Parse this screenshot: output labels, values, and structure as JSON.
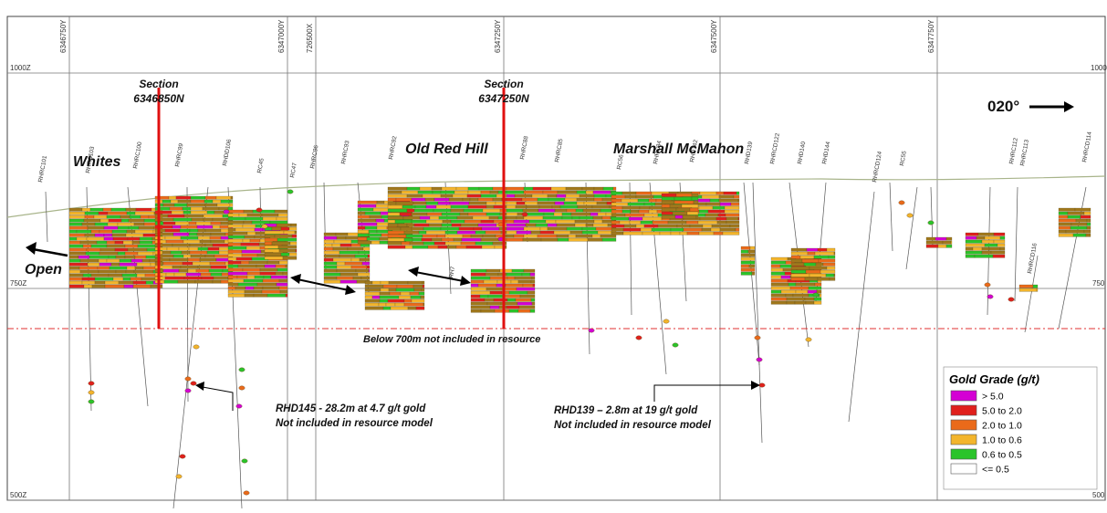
{
  "grid": {
    "northing_labels": [
      "6346750Y",
      "6347000Y",
      "726500X",
      "6347250Y",
      "6347500Y",
      "6347750Y"
    ],
    "elevation_labels": [
      "1000Z",
      "750Z",
      "500Z"
    ],
    "elevation_labels_right": [
      "1000",
      "750",
      "500"
    ]
  },
  "sections": [
    {
      "line1": "Section",
      "line2": "6346850N"
    },
    {
      "line1": "Section",
      "line2": "6347250N"
    }
  ],
  "deposits": [
    "Whites",
    "Old Red Hill",
    "Marshall McMahon"
  ],
  "orientation": {
    "label": "020°"
  },
  "open_label": "Open",
  "resource_cutoff_label": "Below 700m not included in resource",
  "annotations": [
    {
      "line1": "RHD145 - 28.2m at 4.7 g/t gold",
      "line2": "Not included in resource model"
    },
    {
      "line1": "RHD139 – 2.8m at 19 g/t gold",
      "line2": "Not included in resource model"
    }
  ],
  "drillhole_labels": [
    "RHRC101",
    "RHRC103",
    "RHRC100",
    "RHRC99",
    "RHDD106",
    "RC45",
    "RC47",
    "RHRC96",
    "RHRC93",
    "RHRC92",
    "RH7",
    "RHRC88",
    "RHRC85",
    "RC56",
    "RHRC84",
    "RHD142",
    "RHD139",
    "RHRCD122",
    "RHD140",
    "RHD144",
    "RHRCD124",
    "RC55",
    "RHRC112",
    "RHRC113",
    "RHRCD114",
    "RHRCD116"
  ],
  "legend": {
    "title": "Gold Grade (g/t)",
    "items": [
      {
        "label": "> 5.0",
        "color": "#d400d4"
      },
      {
        "label": "5.0 to 2.0",
        "color": "#e0201c"
      },
      {
        "label": "2.0 to 1.0",
        "color": "#ea6a1a"
      },
      {
        "label": "1.0 to 0.6",
        "color": "#f3b52c"
      },
      {
        "label": "0.6 to 0.5",
        "color": "#2ac42a"
      },
      {
        "label": "<= 0.5",
        "color": "#ffffff"
      }
    ]
  },
  "colors": {
    "section_line": "#e01010",
    "cutoff_line": "#e03030",
    "block_base": "#a0781c",
    "topography": "#a8b48a"
  }
}
